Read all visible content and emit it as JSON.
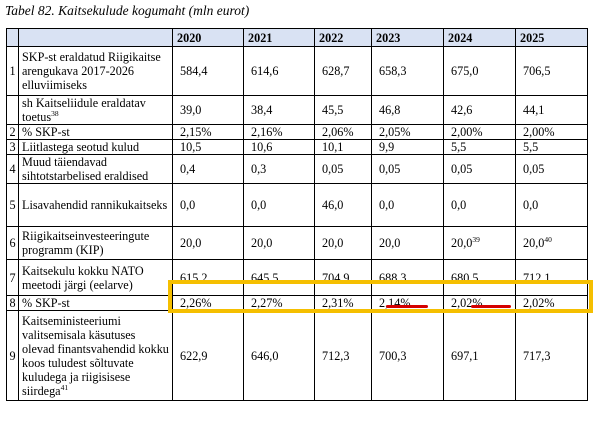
{
  "caption": "Tabel 82. Kaitsekulude kogumaht (mln eurot)",
  "header": {
    "years": [
      "2020",
      "2021",
      "2022",
      "2023",
      "2024",
      "2025"
    ]
  },
  "rows": [
    {
      "num": "1",
      "label": "SKP-st eraldatud Riigikaitse arengukava 2017-2026 elluviimiseks",
      "sup": "",
      "values": [
        "584,4",
        "614,6",
        "628,7",
        "658,3",
        "675,0",
        "706,5"
      ],
      "value_sups": [
        "",
        "",
        "",
        "",
        "",
        ""
      ]
    },
    {
      "num": "",
      "label": "sh Kaitseliidule eraldatav toetus",
      "sup": "38",
      "values": [
        "39,0",
        "38,4",
        "45,5",
        "46,8",
        "42,6",
        "44,1"
      ],
      "value_sups": [
        "",
        "",
        "",
        "",
        "",
        ""
      ]
    },
    {
      "num": "2",
      "label": "% SKP-st",
      "sup": "",
      "values": [
        "2,15%",
        "2,16%",
        "2,06%",
        "2,05%",
        "2,00%",
        "2,00%"
      ],
      "value_sups": [
        "",
        "",
        "",
        "",
        "",
        ""
      ]
    },
    {
      "num": "3",
      "label": "Liitlastega seotud kulud",
      "sup": "",
      "values": [
        "10,5",
        "10,6",
        "10,1",
        "9,9",
        "5,5",
        "5,5"
      ],
      "value_sups": [
        "",
        "",
        "",
        "",
        "",
        ""
      ]
    },
    {
      "num": "4",
      "label": "Muud täiendavad sihtotstarbelised eraldised",
      "sup": "",
      "values": [
        "0,4",
        "0,3",
        "0,05",
        "0,05",
        "0,05",
        "0,05"
      ],
      "value_sups": [
        "",
        "",
        "",
        "",
        "",
        ""
      ]
    },
    {
      "num": "5",
      "label": "Lisavahendid rannikukaitseks",
      "sup": "",
      "values": [
        "0,0",
        "0,0",
        "46,0",
        "0,0",
        "0,0",
        "0,0"
      ],
      "value_sups": [
        "",
        "",
        "",
        "",
        "",
        ""
      ]
    },
    {
      "num": "6",
      "label": "Riigikaitseinvesteeringute programm (KIP)",
      "sup": "",
      "values": [
        "20,0",
        "20,0",
        "20,0",
        "20,0",
        "20,0",
        "20,0"
      ],
      "value_sups": [
        "",
        "",
        "",
        "",
        "39",
        "40"
      ]
    },
    {
      "num": "7",
      "label": "Kaitsekulu kokku NATO meetodi järgi (eelarve)",
      "sup": "",
      "values": [
        "615,2",
        "645,5",
        "704,9",
        "688,3",
        "680,5",
        "712,1"
      ],
      "value_sups": [
        "",
        "",
        "",
        "",
        "",
        ""
      ]
    },
    {
      "num": "8",
      "label": "% SKP-st",
      "sup": "",
      "values": [
        "2,26%",
        "2,27%",
        "2,31%",
        "2,14%",
        "2,02%",
        "2,02%"
      ],
      "value_sups": [
        "",
        "",
        "",
        "",
        "",
        ""
      ]
    },
    {
      "num": "9",
      "label": "Kaitseministeeriumi valitsemisala käsutuses olevad finantsvahendid kokku koos tuludest sõltuvate kuludega ja riigisisese siirdega",
      "sup": "41",
      "values": [
        "622,9",
        "646,0",
        "712,3",
        "700,3",
        "697,1",
        "717,3"
      ],
      "value_sups": [
        "",
        "",
        "",
        "",
        "",
        ""
      ]
    }
  ],
  "annotations": {
    "highlight_color": "#f5bf00",
    "underline_color": "#d40000",
    "header_fill": "#d9e2f3"
  }
}
